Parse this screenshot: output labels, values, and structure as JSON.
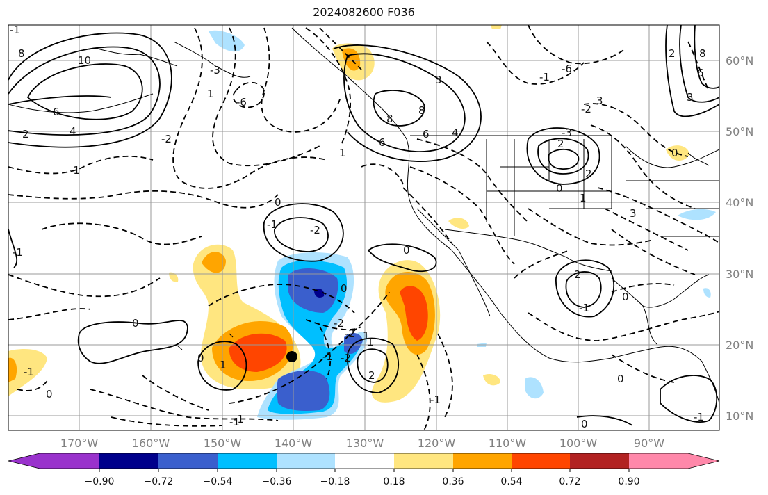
{
  "title": "2024082600 F036",
  "x_tick_labels": [
    "170°W",
    "160°W",
    "150°W",
    "140°W",
    "130°W",
    "120°W",
    "110°W",
    "100°W",
    "90°W"
  ],
  "y_tick_labels": [
    "60°N",
    "50°N",
    "40°N",
    "30°N",
    "20°N",
    "10°N"
  ],
  "colorbar": {
    "labels": [
      "−0.90",
      "−0.72",
      "−0.54",
      "−0.36",
      "−0.18",
      "0.18",
      "0.36",
      "0.54",
      "0.72",
      "0.90"
    ],
    "colors": [
      "#9932cc",
      "#00008b",
      "#3a5fcd",
      "#00bfff",
      "#aee2ff",
      "#ffffff",
      "#ffe680",
      "#ffa500",
      "#ff4500",
      "#b22222",
      "#ff88aa"
    ]
  },
  "contour_labels": [
    "10",
    "8",
    "6",
    "4",
    "2",
    "8",
    "6",
    "3",
    "1",
    "-1",
    "-2",
    "-3",
    "-6",
    "1",
    "6",
    "8",
    "4",
    "3",
    "0",
    "-1",
    "-2",
    "-3",
    "0",
    "1",
    "2",
    "0",
    "-2",
    "-1",
    "2",
    "-2",
    "0",
    "1",
    "2",
    "-1",
    "0",
    "0",
    "-1",
    "-1",
    "-1",
    "1",
    "0",
    "-1",
    "2",
    "0",
    "3",
    "-2",
    "0",
    "-1",
    "0",
    "8",
    "6",
    "3",
    "2",
    "-6",
    "0",
    "-1",
    "-1",
    "-2",
    "1",
    "-1"
  ],
  "storm_marker": "black filled circle"
}
